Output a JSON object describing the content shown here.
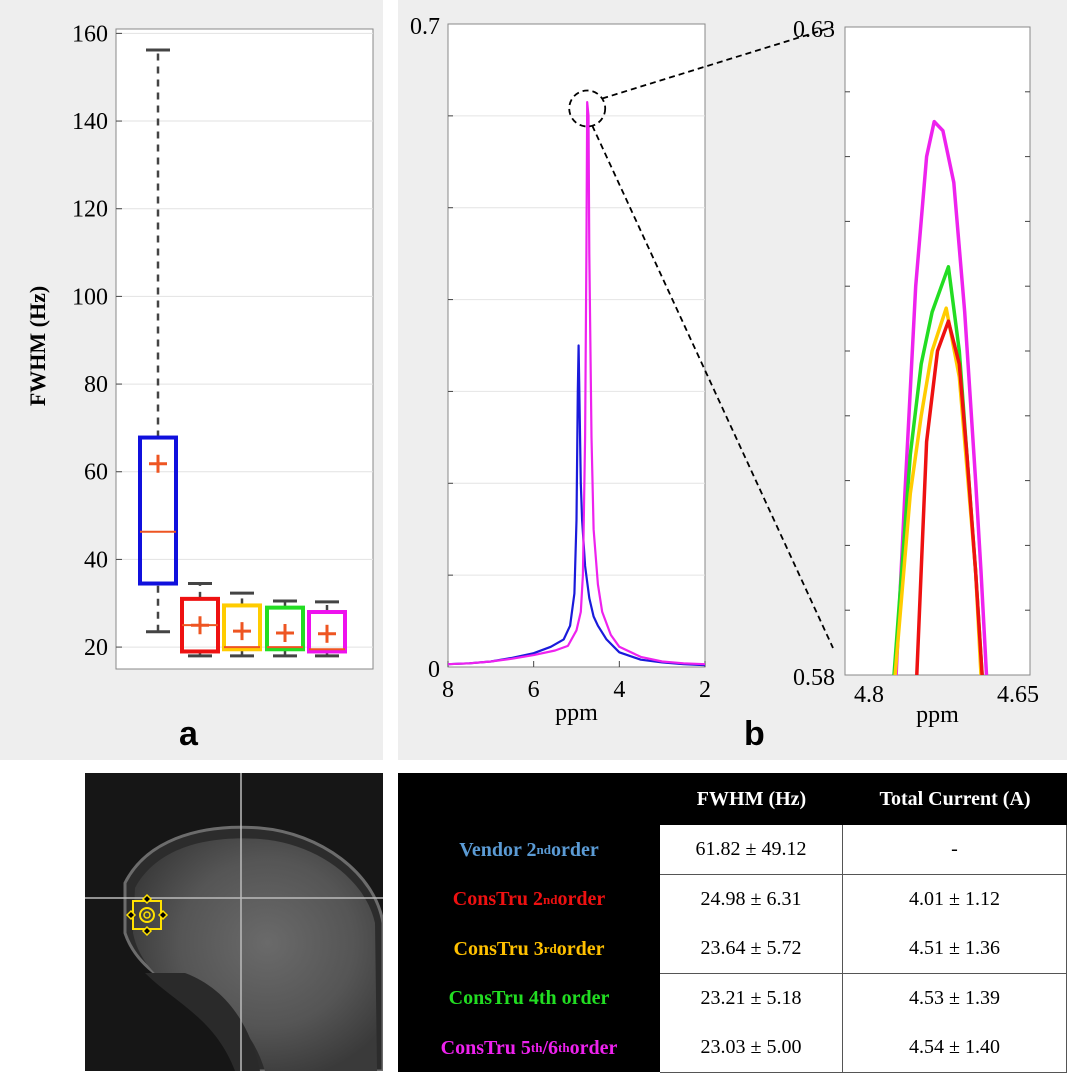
{
  "chart_data": [
    {
      "id": "a",
      "type": "box",
      "panel_label": "a",
      "ylabel": "FWHM (Hz)",
      "ylim": [
        15,
        161
      ],
      "yticks": [
        20,
        40,
        60,
        80,
        100,
        120,
        140,
        160
      ],
      "boxes": [
        {
          "color": "#1010dd",
          "min": 23.5,
          "q1": 34.5,
          "median": 46.3,
          "q3": 67.8,
          "max": 156.2,
          "mean": 61.82
        },
        {
          "color": "#ee1111",
          "min": 18.0,
          "q1": 19.0,
          "median": 25.0,
          "q3": 31.0,
          "max": 34.5,
          "mean": 24.98
        },
        {
          "color": "#ffcc00",
          "min": 18.0,
          "q1": 19.5,
          "median": 20.0,
          "q3": 29.5,
          "max": 32.3,
          "mean": 23.64
        },
        {
          "color": "#22dd22",
          "min": 18.0,
          "q1": 19.5,
          "median": 20.0,
          "q3": 29.0,
          "max": 30.5,
          "mean": 23.21
        },
        {
          "color": "#ee11ee",
          "min": 18.0,
          "q1": 19.0,
          "median": 19.5,
          "q3": 28.0,
          "max": 30.3,
          "mean": 23.03
        }
      ],
      "mean_marker_color": "#ee5522",
      "grid": true
    },
    {
      "id": "b-full",
      "type": "line",
      "panel_label": "b",
      "xlabel": "ppm",
      "xlim": [
        8,
        2
      ],
      "xticks": [
        8,
        6,
        4,
        2
      ],
      "ylim": [
        0,
        0.7
      ],
      "ytick_labels": [
        "0",
        "0.7"
      ],
      "series": [
        {
          "color": "#1a1adb",
          "x": [
            8,
            7.5,
            7,
            6.5,
            6,
            5.6,
            5.3,
            5.15,
            5.05,
            5.0,
            4.97,
            4.95,
            4.9,
            4.87,
            4.8,
            4.7,
            4.6,
            4.5,
            4.3,
            4.0,
            3.5,
            3,
            2.5,
            2
          ],
          "y": [
            0.003,
            0.004,
            0.006,
            0.01,
            0.015,
            0.022,
            0.03,
            0.045,
            0.08,
            0.16,
            0.3,
            0.35,
            0.2,
            0.16,
            0.11,
            0.075,
            0.055,
            0.045,
            0.03,
            0.016,
            0.008,
            0.005,
            0.003,
            0.002
          ]
        },
        {
          "color": "#ee22ee",
          "x": [
            8,
            7.5,
            7,
            6.5,
            6,
            5.5,
            5.2,
            5.0,
            4.9,
            4.85,
            4.8,
            4.77,
            4.75,
            4.72,
            4.7,
            4.65,
            4.6,
            4.5,
            4.4,
            4.2,
            4.0,
            3.5,
            3,
            2.5,
            2
          ],
          "y": [
            0.003,
            0.004,
            0.006,
            0.009,
            0.013,
            0.018,
            0.023,
            0.04,
            0.06,
            0.1,
            0.25,
            0.45,
            0.615,
            0.6,
            0.45,
            0.25,
            0.15,
            0.09,
            0.06,
            0.035,
            0.022,
            0.011,
            0.006,
            0.004,
            0.003
          ]
        }
      ],
      "zoom_callout": {
        "center_x": 4.75,
        "center_y": 0.608
      }
    },
    {
      "id": "b-zoom",
      "type": "line",
      "xlabel": "ppm",
      "xlim": [
        4.81,
        4.64
      ],
      "xtick_labels": [
        "4.8",
        "4.65"
      ],
      "ylim": [
        0.58,
        0.63
      ],
      "ytick_labels": [
        "0.58",
        "0.63"
      ],
      "minor_yticks": [
        0.585,
        0.59,
        0.595,
        0.6,
        0.605,
        0.61,
        0.615,
        0.62,
        0.625
      ],
      "series": [
        {
          "color": "#ee22ee",
          "peak_x": 4.728,
          "peak_y": 0.6227,
          "x": [
            4.763,
            4.755,
            4.745,
            4.735,
            4.728,
            4.72,
            4.71,
            4.7,
            4.69,
            4.685,
            4.68
          ],
          "y": [
            0.58,
            0.594,
            0.61,
            0.62,
            0.6227,
            0.622,
            0.618,
            0.608,
            0.595,
            0.588,
            0.58
          ]
        },
        {
          "color": "#22dd22",
          "peak_x": 4.715,
          "peak_y": 0.6115,
          "x": [
            4.765,
            4.75,
            4.74,
            4.73,
            4.715,
            4.705,
            4.698,
            4.69,
            4.684
          ],
          "y": [
            0.58,
            0.597,
            0.604,
            0.608,
            0.6115,
            0.605,
            0.597,
            0.588,
            0.58
          ]
        },
        {
          "color": "#ffcc00",
          "peak_x": 4.717,
          "peak_y": 0.6083,
          "x": [
            4.764,
            4.75,
            4.74,
            4.73,
            4.717,
            4.705,
            4.698,
            4.69,
            4.685
          ],
          "y": [
            0.58,
            0.594,
            0.6,
            0.605,
            0.6083,
            0.603,
            0.596,
            0.588,
            0.58
          ]
        },
        {
          "color": "#ee1111",
          "peak_x": 4.715,
          "peak_y": 0.6073,
          "x": [
            4.744,
            4.735,
            4.725,
            4.715,
            4.705,
            4.698,
            4.69,
            4.684
          ],
          "y": [
            0.58,
            0.598,
            0.605,
            0.6073,
            0.604,
            0.597,
            0.588,
            0.58
          ]
        }
      ]
    },
    {
      "id": "table",
      "type": "table",
      "columns": [
        "",
        "FWHM (Hz)",
        "Total Current (A)"
      ],
      "rows": [
        {
          "label_main": "Vendor  2",
          "label_sup": "nd",
          "label_tail": " order",
          "color": "#5b9bd5",
          "fwhm": "61.82 ± 49.12",
          "current": "-"
        },
        {
          "label_main": "ConsTru 2",
          "label_sup": "nd",
          "label_tail": " order",
          "color": "#ee1111",
          "fwhm": "24.98 ± 6.31",
          "current": "4.01 ± 1.12"
        },
        {
          "label_main": "ConsTru 3",
          "label_sup": "rd",
          "label_tail": " order",
          "color": "#ffc000",
          "fwhm": "23.64 ± 5.72",
          "current": "4.51 ± 1.36"
        },
        {
          "label_main": "ConsTru 4th order",
          "label_sup": "",
          "label_tail": "",
          "color": "#22dd22",
          "fwhm": "23.21 ± 5.18",
          "current": "4.53 ± 1.39"
        },
        {
          "label_main": "ConsTru 5",
          "label_sup": "th",
          "label_mid": "/6",
          "label_sup2": "th",
          "label_tail": " order",
          "color": "#ee22ee",
          "fwhm": "23.03 ± 5.00",
          "current": "4.54 ± 1.40"
        }
      ]
    }
  ]
}
